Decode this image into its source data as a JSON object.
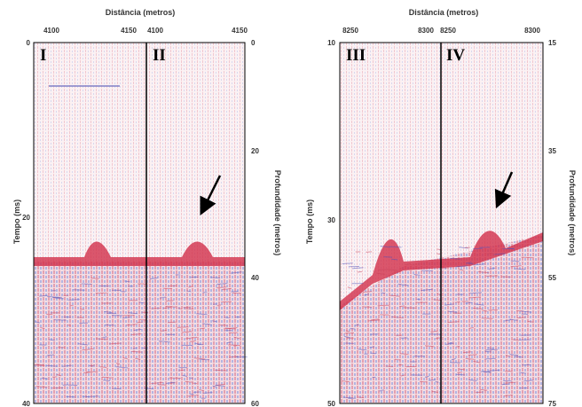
{
  "panels": [
    {
      "title": "Distância (metros)",
      "top_ticks": [
        "4100",
        "4150",
        "4100",
        "4150"
      ],
      "left_label": "Tempo (ms)",
      "left_ticks": [
        "0",
        "20",
        "40"
      ],
      "right_label": "Profundidade (metros)",
      "right_ticks": [
        "0",
        "20",
        "40",
        "60"
      ],
      "sections": [
        "I",
        "II"
      ]
    },
    {
      "title": "Distância (metros)",
      "top_ticks": [
        "8250",
        "8300",
        "8250",
        "8300"
      ],
      "left_label": "Tempo (ms)",
      "left_ticks": [
        "10",
        "30",
        "50"
      ],
      "right_label": "Profundidade (metros)",
      "right_ticks": [
        "15",
        "35",
        "55",
        "75"
      ],
      "sections": [
        "III",
        "IV"
      ]
    }
  ]
}
